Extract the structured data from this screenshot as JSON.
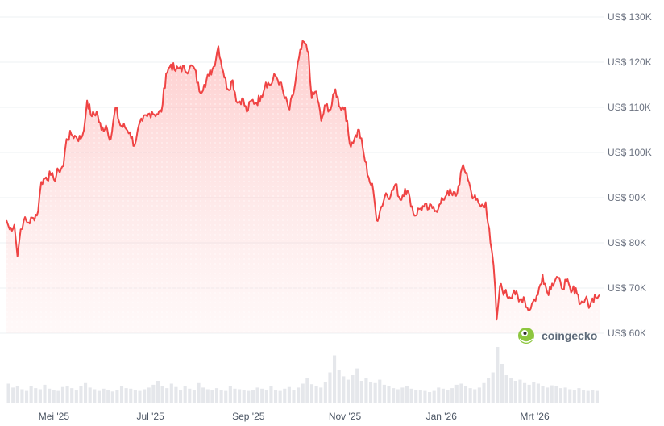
{
  "chart_data": {
    "type": "area",
    "currency_prefix": "US$",
    "y_ticks": [
      "US$ 130K",
      "US$ 120K",
      "US$ 110K",
      "US$ 100K",
      "US$ 90K",
      "US$ 80K",
      "US$ 70K",
      "US$ 60K"
    ],
    "y_tick_values": [
      130000,
      120000,
      110000,
      100000,
      90000,
      80000,
      70000,
      60000
    ],
    "ylim": [
      60000,
      130000
    ],
    "x_ticks": [
      "Mei '25",
      "Jul '25",
      "Sep '25",
      "Nov '25",
      "Jan '26",
      "Mrt '26"
    ],
    "x_tick_dates": [
      "2025-05-01",
      "2025-07-01",
      "2025-09-01",
      "2025-11-01",
      "2026-01-01",
      "2026-03-01"
    ],
    "xlim": [
      "2025-04-01",
      "2026-04-11"
    ],
    "grid": true,
    "line_color": "#ef4444",
    "fill_color": "#fecaca",
    "series": [
      {
        "points": [
          [
            "2025-04-01",
            85000
          ],
          [
            "2025-04-03",
            83000
          ],
          [
            "2025-04-06",
            84000
          ],
          [
            "2025-04-08",
            77000
          ],
          [
            "2025-04-10",
            83000
          ],
          [
            "2025-04-12",
            85000
          ],
          [
            "2025-04-15",
            84500
          ],
          [
            "2025-04-18",
            85500
          ],
          [
            "2025-04-21",
            87000
          ],
          [
            "2025-04-23",
            93500
          ],
          [
            "2025-04-26",
            94500
          ],
          [
            "2025-04-29",
            95000
          ],
          [
            "2025-05-01",
            94000
          ],
          [
            "2025-05-04",
            96000
          ],
          [
            "2025-05-07",
            97000
          ],
          [
            "2025-05-09",
            103000
          ],
          [
            "2025-05-12",
            104000
          ],
          [
            "2025-05-15",
            103500
          ],
          [
            "2025-05-18",
            103000
          ],
          [
            "2025-05-20",
            105000
          ],
          [
            "2025-05-22",
            111500
          ],
          [
            "2025-05-25",
            108000
          ],
          [
            "2025-05-28",
            109000
          ],
          [
            "2025-05-31",
            105000
          ],
          [
            "2025-06-03",
            106000
          ],
          [
            "2025-06-06",
            103000
          ],
          [
            "2025-06-09",
            110000
          ],
          [
            "2025-06-12",
            106000
          ],
          [
            "2025-06-15",
            105500
          ],
          [
            "2025-06-18",
            104500
          ],
          [
            "2025-06-21",
            101500
          ],
          [
            "2025-06-23",
            105000
          ],
          [
            "2025-06-26",
            107000
          ],
          [
            "2025-06-29",
            108000
          ],
          [
            "2025-07-02",
            109000
          ],
          [
            "2025-07-05",
            108500
          ],
          [
            "2025-07-08",
            109000
          ],
          [
            "2025-07-11",
            117500
          ],
          [
            "2025-07-14",
            119500
          ],
          [
            "2025-07-17",
            118000
          ],
          [
            "2025-07-20",
            119000
          ],
          [
            "2025-07-23",
            118000
          ],
          [
            "2025-07-26",
            119000
          ],
          [
            "2025-07-29",
            118500
          ],
          [
            "2025-08-01",
            113500
          ],
          [
            "2025-08-04",
            115000
          ],
          [
            "2025-08-07",
            117000
          ],
          [
            "2025-08-10",
            119000
          ],
          [
            "2025-08-13",
            123500
          ],
          [
            "2025-08-16",
            118000
          ],
          [
            "2025-08-19",
            114000
          ],
          [
            "2025-08-22",
            116000
          ],
          [
            "2025-08-25",
            111000
          ],
          [
            "2025-08-28",
            112000
          ],
          [
            "2025-08-31",
            109000
          ],
          [
            "2025-09-03",
            111500
          ],
          [
            "2025-09-06",
            111000
          ],
          [
            "2025-09-09",
            112500
          ],
          [
            "2025-09-12",
            115500
          ],
          [
            "2025-09-15",
            115000
          ],
          [
            "2025-09-18",
            117000
          ],
          [
            "2025-09-21",
            115500
          ],
          [
            "2025-09-24",
            112000
          ],
          [
            "2025-09-27",
            109500
          ],
          [
            "2025-09-30",
            114000
          ],
          [
            "2025-10-03",
            121000
          ],
          [
            "2025-10-06",
            124500
          ],
          [
            "2025-10-09",
            122000
          ],
          [
            "2025-10-11",
            112000
          ],
          [
            "2025-10-14",
            113500
          ],
          [
            "2025-10-17",
            107000
          ],
          [
            "2025-10-20",
            110500
          ],
          [
            "2025-10-23",
            109500
          ],
          [
            "2025-10-26",
            114000
          ],
          [
            "2025-10-29",
            110000
          ],
          [
            "2025-11-01",
            110000
          ],
          [
            "2025-11-04",
            102000
          ],
          [
            "2025-11-07",
            103000
          ],
          [
            "2025-11-10",
            105000
          ],
          [
            "2025-11-13",
            99500
          ],
          [
            "2025-11-16",
            94500
          ],
          [
            "2025-11-19",
            91500
          ],
          [
            "2025-11-21",
            85000
          ],
          [
            "2025-11-24",
            88000
          ],
          [
            "2025-11-27",
            91000
          ],
          [
            "2025-11-30",
            90500
          ],
          [
            "2025-12-03",
            93000
          ],
          [
            "2025-12-06",
            89500
          ],
          [
            "2025-12-09",
            92000
          ],
          [
            "2025-12-12",
            90000
          ],
          [
            "2025-12-15",
            86000
          ],
          [
            "2025-12-18",
            87500
          ],
          [
            "2025-12-21",
            88000
          ],
          [
            "2025-12-24",
            87500
          ],
          [
            "2025-12-27",
            88000
          ],
          [
            "2025-12-30",
            87500
          ],
          [
            "2026-01-02",
            89500
          ],
          [
            "2026-01-05",
            91500
          ],
          [
            "2026-01-08",
            90500
          ],
          [
            "2026-01-11",
            91000
          ],
          [
            "2026-01-14",
            96500
          ],
          [
            "2026-01-17",
            95500
          ],
          [
            "2026-01-20",
            91000
          ],
          [
            "2026-01-23",
            89500
          ],
          [
            "2026-01-26",
            88000
          ],
          [
            "2026-01-29",
            89000
          ],
          [
            "2026-02-01",
            80000
          ],
          [
            "2026-02-03",
            75000
          ],
          [
            "2026-02-05",
            63000
          ],
          [
            "2026-02-07",
            70500
          ],
          [
            "2026-02-10",
            69000
          ],
          [
            "2026-02-13",
            68000
          ],
          [
            "2026-02-16",
            69500
          ],
          [
            "2026-02-19",
            67000
          ],
          [
            "2026-02-22",
            68000
          ],
          [
            "2026-02-25",
            65000
          ],
          [
            "2026-02-28",
            67000
          ],
          [
            "2026-03-03",
            68500
          ],
          [
            "2026-03-06",
            73000
          ],
          [
            "2026-03-09",
            69000
          ],
          [
            "2026-03-12",
            71000
          ],
          [
            "2026-03-15",
            72500
          ],
          [
            "2026-03-18",
            70000
          ],
          [
            "2026-03-21",
            71500
          ],
          [
            "2026-03-24",
            69000
          ],
          [
            "2026-03-27",
            70000
          ],
          [
            "2026-03-30",
            66500
          ],
          [
            "2026-04-02",
            67500
          ],
          [
            "2026-04-05",
            66000
          ],
          [
            "2026-04-08",
            68500
          ],
          [
            "2026-04-11",
            68500
          ]
        ]
      }
    ],
    "volume": {
      "color": "#e5e7eb",
      "relative_values": [
        0.35,
        0.28,
        0.3,
        0.25,
        0.22,
        0.3,
        0.27,
        0.25,
        0.33,
        0.26,
        0.24,
        0.22,
        0.29,
        0.31,
        0.27,
        0.24,
        0.3,
        0.36,
        0.28,
        0.25,
        0.22,
        0.26,
        0.24,
        0.21,
        0.23,
        0.3,
        0.27,
        0.26,
        0.24,
        0.22,
        0.25,
        0.28,
        0.33,
        0.4,
        0.3,
        0.27,
        0.35,
        0.29,
        0.24,
        0.31,
        0.26,
        0.23,
        0.36,
        0.28,
        0.25,
        0.23,
        0.27,
        0.24,
        0.22,
        0.3,
        0.26,
        0.25,
        0.23,
        0.22,
        0.24,
        0.28,
        0.26,
        0.23,
        0.3,
        0.24,
        0.22,
        0.26,
        0.29,
        0.23,
        0.28,
        0.35,
        0.45,
        0.34,
        0.31,
        0.28,
        0.38,
        0.55,
        0.85,
        0.6,
        0.48,
        0.42,
        0.5,
        0.62,
        0.4,
        0.45,
        0.38,
        0.36,
        0.42,
        0.33,
        0.3,
        0.27,
        0.25,
        0.28,
        0.31,
        0.26,
        0.24,
        0.23,
        0.22,
        0.2,
        0.22,
        0.28,
        0.26,
        0.24,
        0.27,
        0.33,
        0.35,
        0.3,
        0.27,
        0.25,
        0.28,
        0.36,
        0.45,
        0.55,
        1.0,
        0.7,
        0.5,
        0.45,
        0.4,
        0.42,
        0.36,
        0.33,
        0.38,
        0.35,
        0.3,
        0.28,
        0.32,
        0.3,
        0.27,
        0.28,
        0.25,
        0.24,
        0.27,
        0.23,
        0.22,
        0.24,
        0.22
      ]
    }
  },
  "watermark": {
    "text": "coingecko",
    "icon": "gecko-logo-icon"
  }
}
